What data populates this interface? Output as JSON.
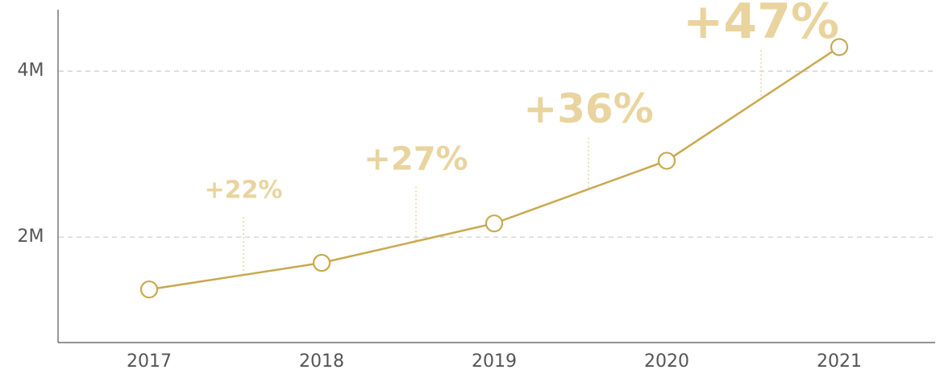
{
  "chart_data": {
    "type": "line",
    "categories": [
      "2017",
      "2018",
      "2019",
      "2020",
      "2021"
    ],
    "series": [
      {
        "name": "Value",
        "color": "#c9a94f",
        "values": [
          1370000,
          1690000,
          2165000,
          2920000,
          4290000
        ]
      }
    ],
    "ylim": [
      730000,
      4740000
    ],
    "yticks": [
      {
        "value": 2000000,
        "label": "2M"
      },
      {
        "value": 4000000,
        "label": "4M"
      }
    ],
    "grid": true,
    "annotations": [
      "+22%",
      "+27%",
      "+36%",
      "+47%"
    ]
  }
}
